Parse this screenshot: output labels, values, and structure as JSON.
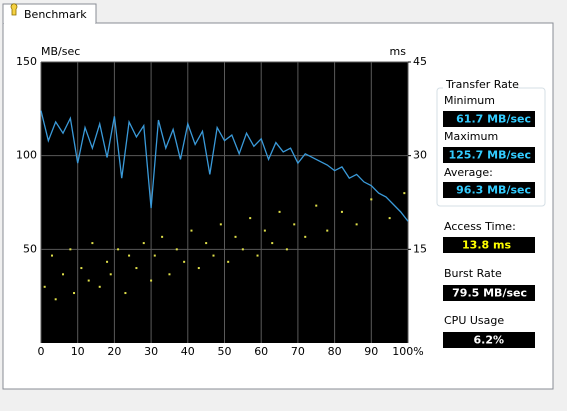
{
  "tab": "Benchmark",
  "chart_data": {
    "type": "line",
    "y_label": "MB/sec",
    "y2_label": "ms",
    "xlim": [
      0,
      100
    ],
    "xticks": [
      0,
      10,
      20,
      30,
      40,
      50,
      60,
      70,
      80,
      90,
      {
        "value": 100,
        "label": "100%"
      }
    ],
    "ylim": [
      0,
      150
    ],
    "yticks": [
      50,
      100,
      150
    ],
    "y2lim": [
      0,
      45
    ],
    "y2ticks": [
      15,
      30,
      45
    ],
    "grid": true,
    "series": [
      {
        "name": "Transfer Rate",
        "color": "#3a9ad9",
        "x": [
          0,
          2,
          4,
          6,
          8,
          10,
          12,
          14,
          16,
          18,
          20,
          22,
          24,
          26,
          28,
          30,
          32,
          34,
          36,
          38,
          40,
          42,
          44,
          46,
          48,
          50,
          52,
          54,
          56,
          58,
          60,
          62,
          64,
          66,
          68,
          70,
          72,
          74,
          76,
          78,
          80,
          82,
          84,
          86,
          88,
          90,
          92,
          94,
          96,
          98,
          100
        ],
        "values": [
          124,
          108,
          118,
          112,
          120,
          96,
          115,
          104,
          117,
          99,
          121,
          88,
          118,
          110,
          116,
          72,
          119,
          104,
          114,
          98,
          117,
          106,
          113,
          90,
          115,
          108,
          111,
          101,
          112,
          105,
          109,
          98,
          107,
          102,
          104,
          96,
          101,
          99,
          97,
          95,
          92,
          94,
          88,
          90,
          86,
          84,
          80,
          78,
          74,
          70,
          65
        ]
      },
      {
        "name": "Access Time",
        "type": "scatter",
        "axis": "y2",
        "color": "#e0e04a",
        "x": [
          1,
          3,
          4,
          6,
          8,
          9,
          11,
          13,
          14,
          16,
          18,
          19,
          21,
          23,
          24,
          26,
          28,
          30,
          31,
          33,
          35,
          37,
          39,
          41,
          43,
          45,
          47,
          49,
          51,
          53,
          55,
          57,
          59,
          61,
          63,
          65,
          67,
          69,
          72,
          75,
          78,
          82,
          86,
          90,
          95,
          99
        ],
        "values": [
          9,
          14,
          7,
          11,
          15,
          8,
          12,
          10,
          16,
          9,
          13,
          11,
          15,
          8,
          14,
          12,
          16,
          10,
          14,
          17,
          11,
          15,
          13,
          18,
          12,
          16,
          14,
          19,
          13,
          17,
          15,
          20,
          14,
          18,
          16,
          21,
          15,
          19,
          17,
          22,
          18,
          21,
          19,
          23,
          20,
          24
        ]
      }
    ]
  },
  "stats": {
    "transfer_rate": {
      "title": "Transfer Rate",
      "minimum": {
        "label": "Minimum",
        "value": "61.7 MB/sec"
      },
      "maximum": {
        "label": "Maximum",
        "value": "125.7 MB/sec"
      },
      "average": {
        "label": "Average:",
        "value": "96.3 MB/sec"
      }
    },
    "access_time": {
      "label": "Access Time:",
      "value": "13.8 ms"
    },
    "burst_rate": {
      "label": "Burst Rate",
      "value": "79.5 MB/sec"
    },
    "cpu_usage": {
      "label": "CPU Usage",
      "value": "6.2%"
    }
  }
}
